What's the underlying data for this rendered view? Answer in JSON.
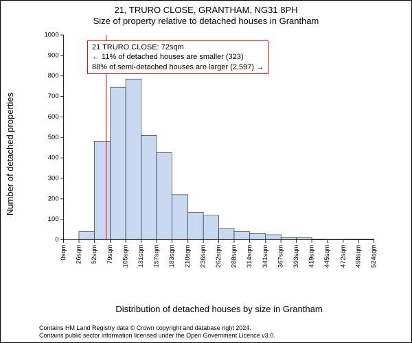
{
  "title_line1": "21, TRURO CLOSE, GRANTHAM, NG31 8PH",
  "title_line2": "Size of property relative to detached houses in Grantham",
  "ylabel": "Number of detached properties",
  "xlabel": "Distribution of detached houses by size in Grantham",
  "chart": {
    "type": "histogram",
    "ylim": [
      0,
      1000
    ],
    "ytick_step": 100,
    "bar_fill": "#c9d9f2",
    "bar_stroke": "#000000",
    "background_color": "#ffffff",
    "marker_line_color": "#ff0000",
    "marker_x_value": 72,
    "x_ticks": [
      {
        "v": 0,
        "label": "0sqm"
      },
      {
        "v": 26,
        "label": "26sqm"
      },
      {
        "v": 52,
        "label": "52sqm"
      },
      {
        "v": 79,
        "label": "79sqm"
      },
      {
        "v": 105,
        "label": "105sqm"
      },
      {
        "v": 131,
        "label": "131sqm"
      },
      {
        "v": 157,
        "label": "157sqm"
      },
      {
        "v": 183,
        "label": "183sqm"
      },
      {
        "v": 210,
        "label": "210sqm"
      },
      {
        "v": 236,
        "label": "236sqm"
      },
      {
        "v": 262,
        "label": "262sqm"
      },
      {
        "v": 288,
        "label": "288sqm"
      },
      {
        "v": 314,
        "label": "314sqm"
      },
      {
        "v": 341,
        "label": "341sqm"
      },
      {
        "v": 367,
        "label": "367sqm"
      },
      {
        "v": 393,
        "label": "393sqm"
      },
      {
        "v": 419,
        "label": "419sqm"
      },
      {
        "v": 445,
        "label": "445sqm"
      },
      {
        "v": 472,
        "label": "472sqm"
      },
      {
        "v": 498,
        "label": "498sqm"
      },
      {
        "v": 524,
        "label": "524sqm"
      }
    ],
    "bars": [
      {
        "x0": 0,
        "x1": 26,
        "y": 0
      },
      {
        "x0": 26,
        "x1": 52,
        "y": 40
      },
      {
        "x0": 52,
        "x1": 79,
        "y": 480
      },
      {
        "x0": 79,
        "x1": 105,
        "y": 745
      },
      {
        "x0": 105,
        "x1": 131,
        "y": 785
      },
      {
        "x0": 131,
        "x1": 157,
        "y": 510
      },
      {
        "x0": 157,
        "x1": 183,
        "y": 425
      },
      {
        "x0": 183,
        "x1": 210,
        "y": 220
      },
      {
        "x0": 210,
        "x1": 236,
        "y": 135
      },
      {
        "x0": 236,
        "x1": 262,
        "y": 120
      },
      {
        "x0": 262,
        "x1": 288,
        "y": 55
      },
      {
        "x0": 288,
        "x1": 314,
        "y": 40
      },
      {
        "x0": 314,
        "x1": 341,
        "y": 30
      },
      {
        "x0": 341,
        "x1": 367,
        "y": 25
      },
      {
        "x0": 367,
        "x1": 393,
        "y": 10
      },
      {
        "x0": 393,
        "x1": 419,
        "y": 10
      },
      {
        "x0": 419,
        "x1": 445,
        "y": 3
      },
      {
        "x0": 445,
        "x1": 472,
        "y": 2
      },
      {
        "x0": 472,
        "x1": 498,
        "y": 3
      },
      {
        "x0": 498,
        "x1": 524,
        "y": 3
      }
    ]
  },
  "callout": {
    "border_color": "#ff0000",
    "lines": [
      "21 TRURO CLOSE: 72sqm",
      "← 11% of detached houses are smaller (323)",
      "88% of semi-detached houses are larger (2,597) →"
    ]
  },
  "footer_line1": "Contains HM Land Registry data © Crown copyright and database right 2024.",
  "footer_line2": "Contains public sector information licensed under the Open Government Licence v3.0."
}
